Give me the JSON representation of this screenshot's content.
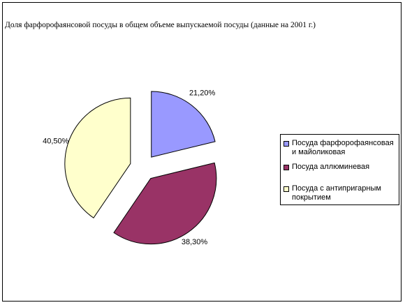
{
  "chart_data": {
    "type": "pie",
    "title": "Доля фарфорофаянсовой посуды в общем объеме выпускаемой посуды (данные на 2001 г.)",
    "legend_position": "right",
    "slices": [
      {
        "name": "Посуда фарфорофаянсовая и майоликовая",
        "value": 21.2,
        "label": "21,20%",
        "color": "#9999FF"
      },
      {
        "name": "Посуда аллюминевая",
        "value": 38.3,
        "label": "38,30%",
        "color": "#993366"
      },
      {
        "name": "Посуда с антипригарным покрытием",
        "value": 40.5,
        "label": "40,50%",
        "color": "#FFFFCC"
      }
    ]
  }
}
